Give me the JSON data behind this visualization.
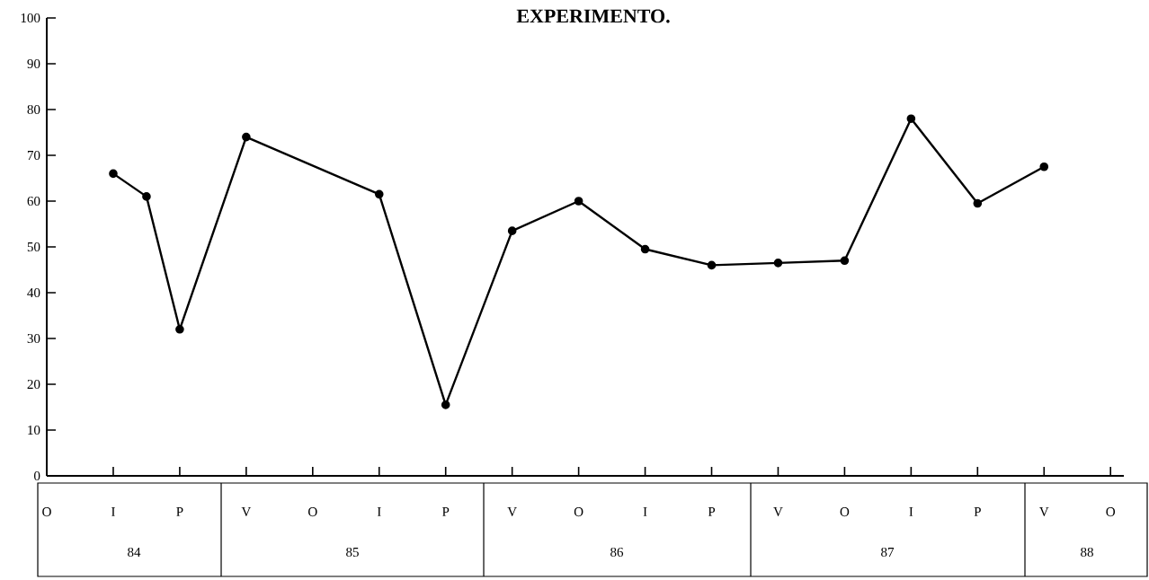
{
  "chart_data": {
    "type": "line",
    "title": "EXPERIMENTO.",
    "categories": [
      "O",
      null,
      "I",
      null,
      "P",
      null,
      "V",
      null,
      "O",
      null,
      "I",
      null,
      "P",
      null,
      "V",
      null,
      "O",
      null,
      "I",
      null,
      "P",
      null,
      "V",
      null,
      "O",
      null,
      "I",
      null,
      "P",
      null,
      "V",
      null,
      "O"
    ],
    "values": [
      null,
      null,
      66,
      61,
      32,
      null,
      74,
      null,
      null,
      null,
      61.5,
      null,
      15.5,
      null,
      53.5,
      null,
      60,
      null,
      49.5,
      null,
      46,
      null,
      46.5,
      null,
      47,
      null,
      78,
      null,
      59.5,
      null,
      67.5,
      null,
      null
    ],
    "color": "#000000",
    "marker": "circle",
    "ylim": [
      0,
      100
    ],
    "yticks": [
      0,
      10,
      20,
      30,
      40,
      50,
      60,
      70,
      80,
      90,
      100
    ],
    "annotations": [
      "84",
      "85",
      "86",
      "87",
      "88"
    ]
  }
}
